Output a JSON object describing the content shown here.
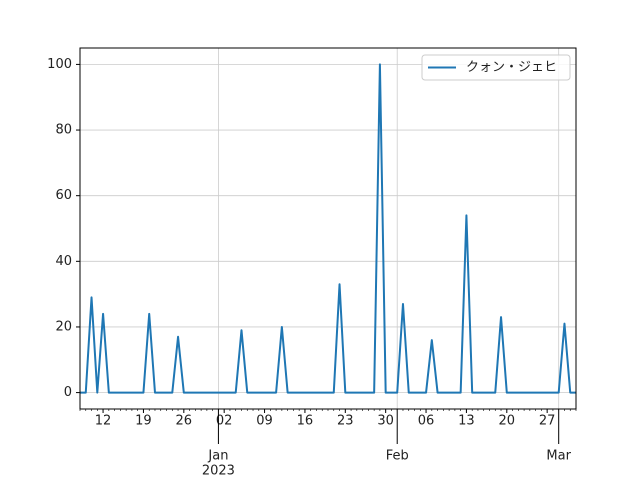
{
  "chart_data": {
    "type": "line",
    "x": [
      "2022-12-08",
      "2022-12-09",
      "2022-12-10",
      "2022-12-11",
      "2022-12-12",
      "2022-12-13",
      "2022-12-14",
      "2022-12-15",
      "2022-12-16",
      "2022-12-17",
      "2022-12-18",
      "2022-12-19",
      "2022-12-20",
      "2022-12-21",
      "2022-12-22",
      "2022-12-23",
      "2022-12-24",
      "2022-12-25",
      "2022-12-26",
      "2022-12-27",
      "2022-12-28",
      "2022-12-29",
      "2022-12-30",
      "2022-12-31",
      "2023-01-01",
      "2023-01-02",
      "2023-01-03",
      "2023-01-04",
      "2023-01-05",
      "2023-01-06",
      "2023-01-07",
      "2023-01-08",
      "2023-01-09",
      "2023-01-10",
      "2023-01-11",
      "2023-01-12",
      "2023-01-13",
      "2023-01-14",
      "2023-01-15",
      "2023-01-16",
      "2023-01-17",
      "2023-01-18",
      "2023-01-19",
      "2023-01-20",
      "2023-01-21",
      "2023-01-22",
      "2023-01-23",
      "2023-01-24",
      "2023-01-25",
      "2023-01-26",
      "2023-01-27",
      "2023-01-28",
      "2023-01-29",
      "2023-01-30",
      "2023-01-31",
      "2023-02-01",
      "2023-02-02",
      "2023-02-03",
      "2023-02-04",
      "2023-02-05",
      "2023-02-06",
      "2023-02-07",
      "2023-02-08",
      "2023-02-09",
      "2023-02-10",
      "2023-02-11",
      "2023-02-12",
      "2023-02-13",
      "2023-02-14",
      "2023-02-15",
      "2023-02-16",
      "2023-02-17",
      "2023-02-18",
      "2023-02-19",
      "2023-02-20",
      "2023-02-21",
      "2023-02-22",
      "2023-02-23",
      "2023-02-24",
      "2023-02-25",
      "2023-02-26",
      "2023-02-27",
      "2023-02-28",
      "2023-03-01",
      "2023-03-02",
      "2023-03-03",
      "2023-03-04"
    ],
    "series": [
      {
        "name": "クォン・ジェヒ",
        "color": "#1f77b4",
        "values": [
          0,
          0,
          29,
          0,
          24,
          0,
          0,
          0,
          0,
          0,
          0,
          0,
          24,
          0,
          0,
          0,
          0,
          17,
          0,
          0,
          0,
          0,
          0,
          0,
          0,
          0,
          0,
          0,
          19,
          0,
          0,
          0,
          0,
          0,
          0,
          20,
          0,
          0,
          0,
          0,
          0,
          0,
          0,
          0,
          0,
          33,
          0,
          0,
          0,
          0,
          0,
          0,
          100,
          0,
          0,
          0,
          27,
          0,
          0,
          0,
          0,
          16,
          0,
          0,
          0,
          0,
          0,
          54,
          0,
          0,
          0,
          0,
          0,
          23,
          0,
          0,
          0,
          0,
          0,
          0,
          0,
          0,
          0,
          0,
          21,
          0,
          0
        ]
      }
    ],
    "xlim": [
      "2022-12-08",
      "2023-03-04"
    ],
    "xticks": [
      {
        "value": "2022-12-12",
        "label": "12"
      },
      {
        "value": "2022-12-19",
        "label": "19"
      },
      {
        "value": "2022-12-26",
        "label": "26"
      },
      {
        "value": "2023-01-02",
        "label": "02"
      },
      {
        "value": "2023-01-09",
        "label": "09"
      },
      {
        "value": "2023-01-16",
        "label": "16"
      },
      {
        "value": "2023-01-23",
        "label": "23"
      },
      {
        "value": "2023-01-30",
        "label": "30"
      },
      {
        "value": "2023-02-06",
        "label": "06"
      },
      {
        "value": "2023-02-13",
        "label": "13"
      },
      {
        "value": "2023-02-20",
        "label": "20"
      },
      {
        "value": "2023-02-27",
        "label": "27"
      }
    ],
    "xticks_major": [
      {
        "value": "2023-01-01",
        "label": "Jan",
        "sublabel": "2023"
      },
      {
        "value": "2023-02-01",
        "label": "Feb"
      },
      {
        "value": "2023-03-01",
        "label": "Mar"
      }
    ],
    "ylim": [
      -5,
      105
    ],
    "yticks": [
      0,
      20,
      40,
      60,
      80,
      100
    ],
    "grid": true,
    "legend": "upper right"
  }
}
